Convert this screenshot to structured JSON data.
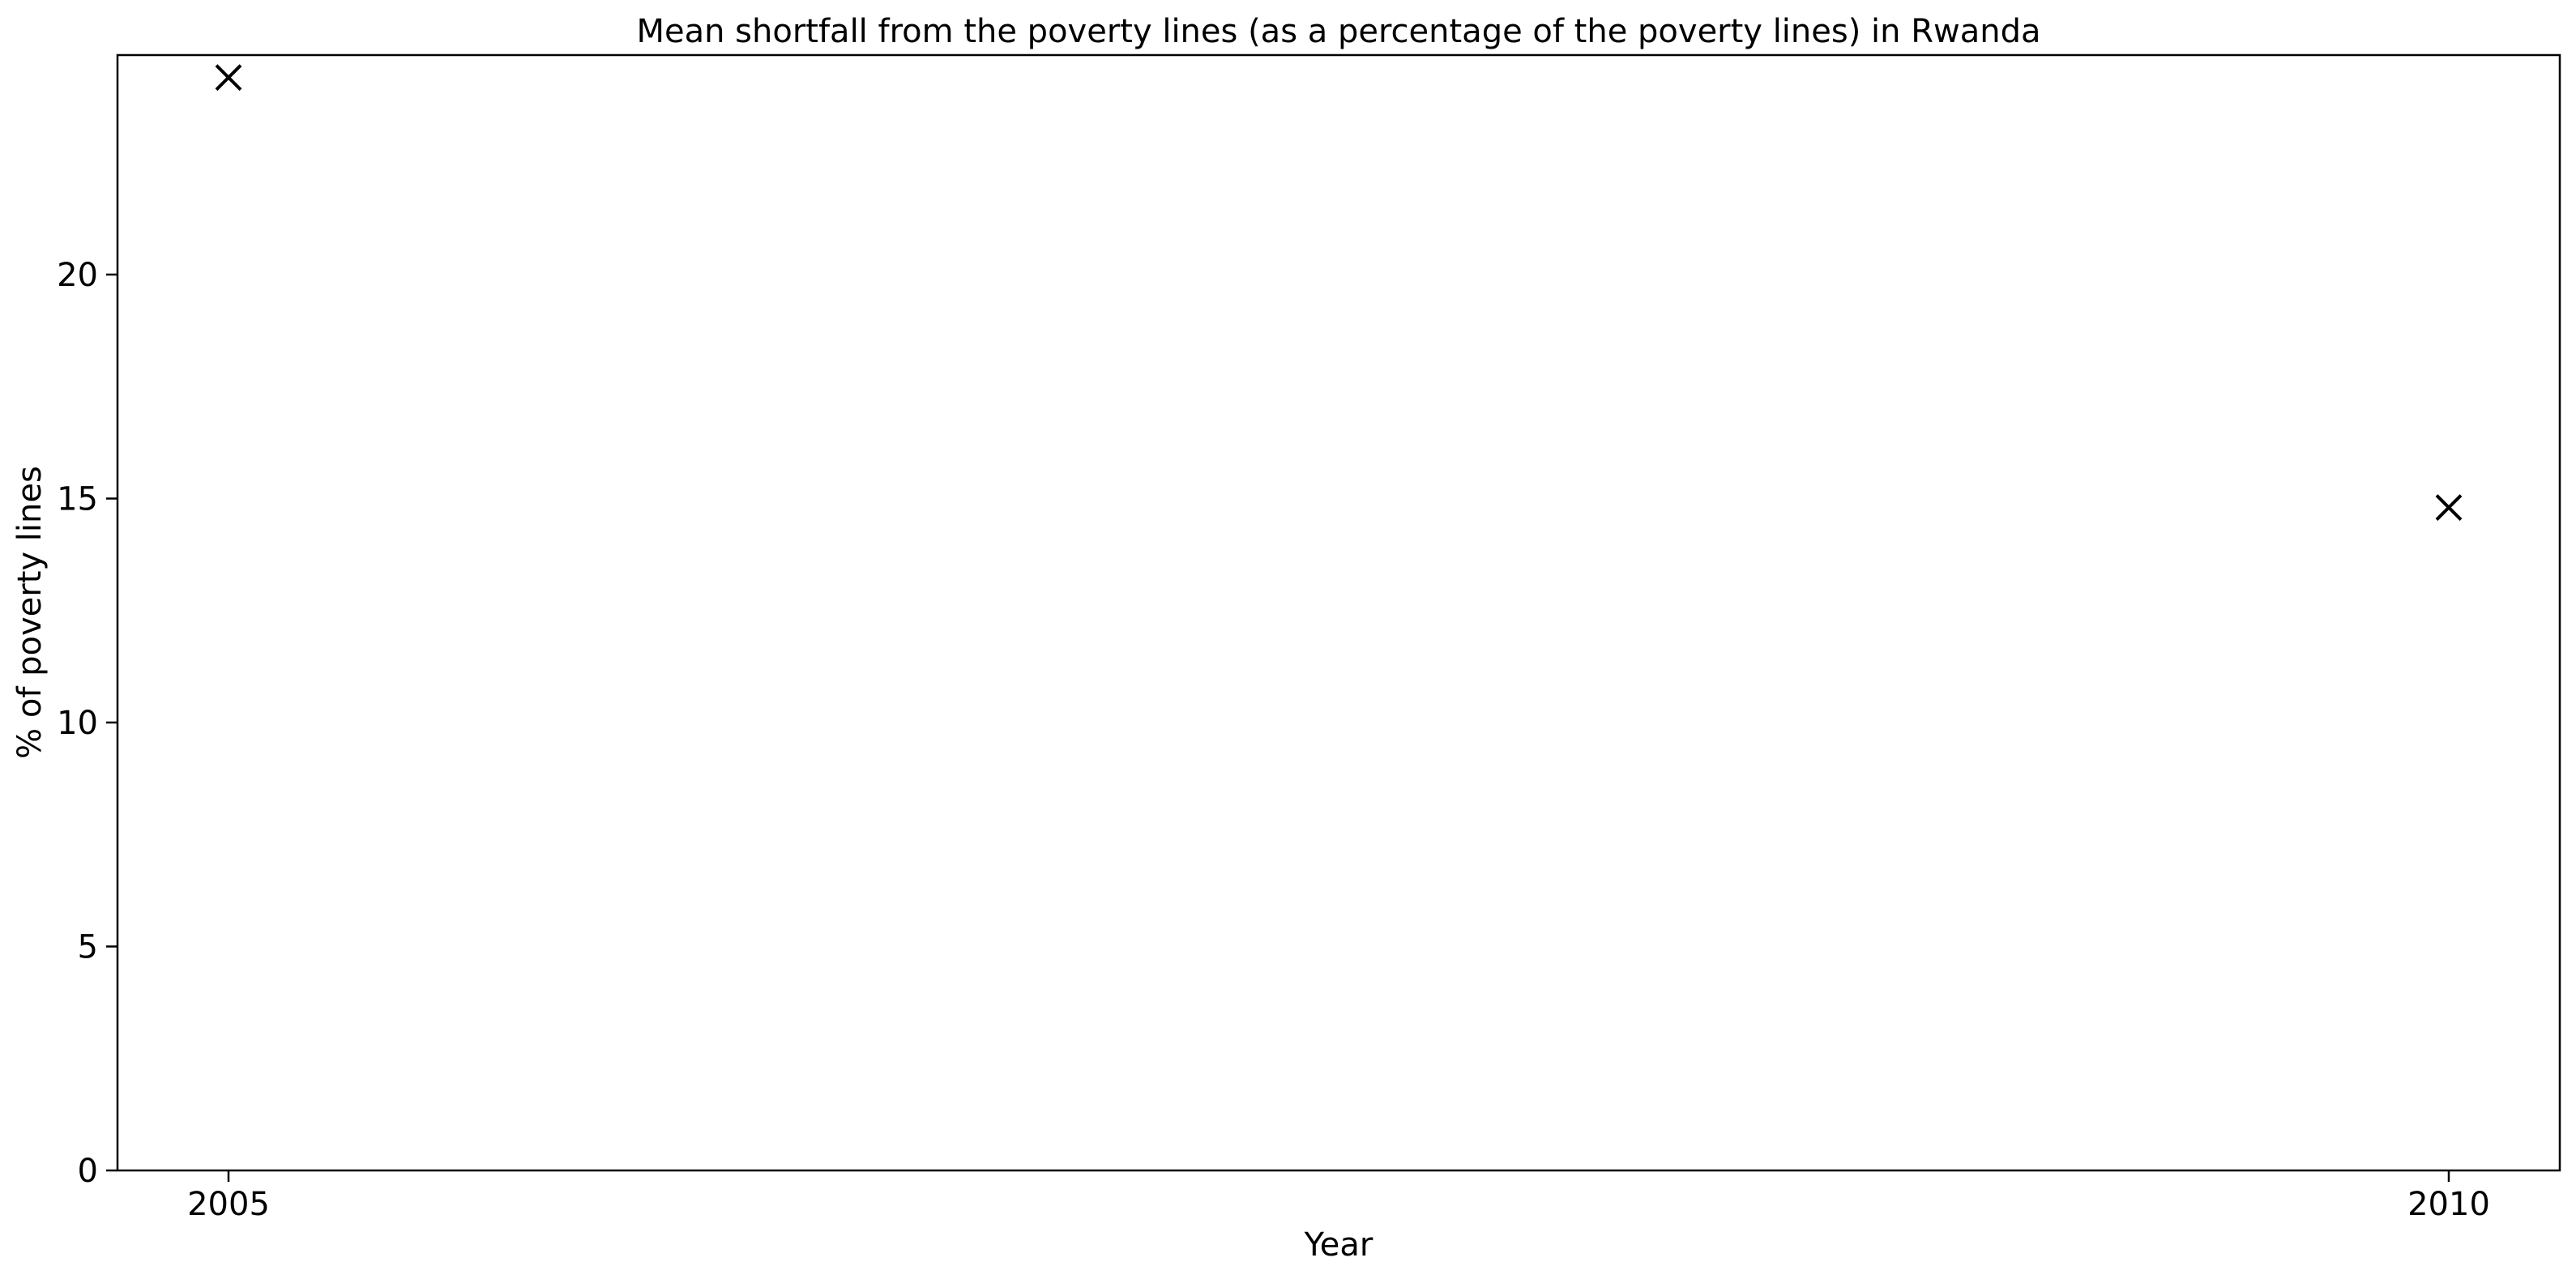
{
  "chart_data": {
    "type": "scatter",
    "title": "Mean shortfall from the poverty lines (as a percentage of the poverty lines) in Rwanda",
    "xlabel": "Year",
    "ylabel": "% of poverty lines",
    "x_ticks": [
      2005,
      2010
    ],
    "y_ticks": [
      0,
      5,
      10,
      15,
      20
    ],
    "xlim": [
      2004.75,
      2010.25
    ],
    "ylim": [
      0,
      24.9
    ],
    "grid": false,
    "marker": "x",
    "marker_color": "#000000",
    "series": [
      {
        "x": [
          2005,
          2010
        ],
        "y": [
          24.4,
          14.8
        ]
      }
    ]
  }
}
